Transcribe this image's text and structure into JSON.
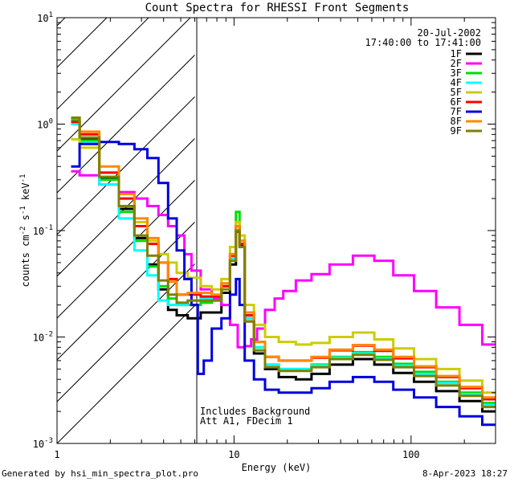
{
  "chart_data": {
    "type": "line",
    "title": "Count Spectra for RHESSI Front Segments",
    "xlabel": "Energy (keV)",
    "ylabel_parts": [
      "counts cm",
      "-2",
      " s",
      "-1",
      " keV",
      "-1"
    ],
    "xscale": "log",
    "yscale": "log",
    "xlim": [
      1,
      300
    ],
    "ylim": [
      0.001,
      10
    ],
    "x_ticks": [
      {
        "value": 1,
        "label": "1"
      },
      {
        "value": 10,
        "label": "10"
      },
      {
        "value": 100,
        "label": "100"
      }
    ],
    "y_ticks": [
      {
        "exp": 1,
        "base": "10",
        "sup": "1"
      },
      {
        "exp": 0,
        "base": "10",
        "sup": "0"
      },
      {
        "exp": -1,
        "base": "10",
        "sup": "-1"
      },
      {
        "exp": -2,
        "base": "10",
        "sup": "-2"
      },
      {
        "exp": -3,
        "base": "10",
        "sup": "-3"
      }
    ],
    "attenuator_hatch_limit_kev": 6,
    "info_lines": [
      "20-Jul-2002",
      "17:40:00 to 17:41:00"
    ],
    "annotations": [
      "Includes Background",
      "Att A1, FDecim 1"
    ],
    "legend_position": "top-right",
    "series": [
      {
        "name": "1F",
        "color": "#000000",
        "points": [
          [
            1.2,
            1.05
          ],
          [
            1.5,
            0.72
          ],
          [
            2.0,
            0.31
          ],
          [
            2.5,
            0.16
          ],
          [
            3.0,
            0.085
          ],
          [
            3.5,
            0.048
          ],
          [
            4.0,
            0.028
          ],
          [
            4.5,
            0.018
          ],
          [
            5.0,
            0.016
          ],
          [
            6.0,
            0.015
          ],
          [
            7.0,
            0.017
          ],
          [
            8.0,
            0.017
          ],
          [
            9.0,
            0.026
          ],
          [
            10.0,
            0.048
          ],
          [
            10.5,
            0.098
          ],
          [
            11.0,
            0.072
          ],
          [
            12.0,
            0.014
          ],
          [
            14.0,
            0.007
          ],
          [
            16.0,
            0.005
          ],
          [
            20.0,
            0.0042
          ],
          [
            25.0,
            0.004
          ],
          [
            30.0,
            0.0045
          ],
          [
            40.0,
            0.0055
          ],
          [
            55.0,
            0.0062
          ],
          [
            70.0,
            0.0055
          ],
          [
            90.0,
            0.0046
          ],
          [
            120.0,
            0.0038
          ],
          [
            160.0,
            0.0031
          ],
          [
            220.0,
            0.0025
          ],
          [
            290.0,
            0.002
          ]
        ]
      },
      {
        "name": "2F",
        "color": "#ff00ff",
        "points": [
          [
            1.2,
            0.36
          ],
          [
            1.5,
            0.33
          ],
          [
            2.0,
            0.27
          ],
          [
            2.5,
            0.23
          ],
          [
            3.0,
            0.2
          ],
          [
            3.5,
            0.17
          ],
          [
            4.0,
            0.14
          ],
          [
            4.5,
            0.11
          ],
          [
            5.0,
            0.09
          ],
          [
            5.5,
            0.06
          ],
          [
            6.0,
            0.042
          ],
          [
            7.0,
            0.028
          ],
          [
            8.0,
            0.023
          ],
          [
            9.0,
            0.02
          ],
          [
            10.0,
            0.013
          ],
          [
            11.0,
            0.008
          ],
          [
            12.0,
            0.0082
          ],
          [
            13.0,
            0.0095
          ],
          [
            14.0,
            0.012
          ],
          [
            16.0,
            0.018
          ],
          [
            18.0,
            0.023
          ],
          [
            20.0,
            0.027
          ],
          [
            25.0,
            0.034
          ],
          [
            30.0,
            0.039
          ],
          [
            40.0,
            0.048
          ],
          [
            55.0,
            0.058
          ],
          [
            70.0,
            0.052
          ],
          [
            90.0,
            0.038
          ],
          [
            120.0,
            0.027
          ],
          [
            160.0,
            0.019
          ],
          [
            220.0,
            0.013
          ],
          [
            290.0,
            0.0085
          ]
        ]
      },
      {
        "name": "3F",
        "color": "#00dd00",
        "points": [
          [
            1.2,
            1.1
          ],
          [
            1.5,
            0.7
          ],
          [
            2.0,
            0.3
          ],
          [
            2.5,
            0.15
          ],
          [
            3.0,
            0.08
          ],
          [
            3.5,
            0.046
          ],
          [
            4.0,
            0.03
          ],
          [
            4.5,
            0.023
          ],
          [
            5.0,
            0.02
          ],
          [
            6.0,
            0.02
          ],
          [
            7.0,
            0.021
          ],
          [
            8.0,
            0.022
          ],
          [
            9.0,
            0.03
          ],
          [
            10.0,
            0.06
          ],
          [
            10.5,
            0.15
          ],
          [
            11.0,
            0.08
          ],
          [
            12.0,
            0.015
          ],
          [
            14.0,
            0.008
          ],
          [
            16.0,
            0.0055
          ],
          [
            20.0,
            0.005
          ],
          [
            25.0,
            0.005
          ],
          [
            30.0,
            0.0055
          ],
          [
            40.0,
            0.0065
          ],
          [
            55.0,
            0.0072
          ],
          [
            70.0,
            0.0065
          ],
          [
            90.0,
            0.0056
          ],
          [
            120.0,
            0.0047
          ],
          [
            160.0,
            0.0038
          ],
          [
            220.0,
            0.003
          ],
          [
            290.0,
            0.0024
          ]
        ]
      },
      {
        "name": "4F",
        "color": "#00ffff",
        "points": [
          [
            1.2,
            1.0
          ],
          [
            1.5,
            0.66
          ],
          [
            2.0,
            0.27
          ],
          [
            2.5,
            0.13
          ],
          [
            3.0,
            0.065
          ],
          [
            3.5,
            0.038
          ],
          [
            4.0,
            0.022
          ],
          [
            4.5,
            0.02
          ],
          [
            5.0,
            0.02
          ],
          [
            6.0,
            0.022
          ],
          [
            7.0,
            0.023
          ],
          [
            8.0,
            0.024
          ],
          [
            9.0,
            0.03
          ],
          [
            10.0,
            0.055
          ],
          [
            10.5,
            0.12
          ],
          [
            11.0,
            0.075
          ],
          [
            12.0,
            0.015
          ],
          [
            14.0,
            0.008
          ],
          [
            16.0,
            0.0055
          ],
          [
            20.0,
            0.005
          ],
          [
            25.0,
            0.005
          ],
          [
            30.0,
            0.0054
          ],
          [
            40.0,
            0.0064
          ],
          [
            55.0,
            0.007
          ],
          [
            70.0,
            0.0063
          ],
          [
            90.0,
            0.0054
          ],
          [
            120.0,
            0.0045
          ],
          [
            160.0,
            0.0037
          ],
          [
            220.0,
            0.0029
          ],
          [
            290.0,
            0.0023
          ]
        ]
      },
      {
        "name": "5F",
        "color": "#cccc00",
        "points": [
          [
            1.2,
            0.72
          ],
          [
            1.5,
            0.6
          ],
          [
            2.0,
            0.35
          ],
          [
            2.5,
            0.2
          ],
          [
            3.0,
            0.12
          ],
          [
            3.5,
            0.08
          ],
          [
            4.0,
            0.06
          ],
          [
            4.5,
            0.05
          ],
          [
            5.0,
            0.04
          ],
          [
            6.0,
            0.036
          ],
          [
            7.0,
            0.03
          ],
          [
            8.0,
            0.028
          ],
          [
            9.0,
            0.035
          ],
          [
            10.0,
            0.07
          ],
          [
            10.5,
            0.12
          ],
          [
            11.0,
            0.09
          ],
          [
            12.0,
            0.02
          ],
          [
            14.0,
            0.013
          ],
          [
            16.0,
            0.01
          ],
          [
            20.0,
            0.009
          ],
          [
            25.0,
            0.0085
          ],
          [
            30.0,
            0.0088
          ],
          [
            40.0,
            0.01
          ],
          [
            55.0,
            0.011
          ],
          [
            70.0,
            0.0095
          ],
          [
            90.0,
            0.0078
          ],
          [
            120.0,
            0.0062
          ],
          [
            160.0,
            0.005
          ],
          [
            220.0,
            0.0039
          ],
          [
            290.0,
            0.003
          ]
        ]
      },
      {
        "name": "6F",
        "color": "#ff0000",
        "points": [
          [
            1.2,
            1.05
          ],
          [
            1.5,
            0.8
          ],
          [
            2.0,
            0.35
          ],
          [
            2.5,
            0.2
          ],
          [
            3.0,
            0.11
          ],
          [
            3.5,
            0.075
          ],
          [
            4.0,
            0.05
          ],
          [
            4.5,
            0.035
          ],
          [
            5.0,
            0.025
          ],
          [
            6.0,
            0.025
          ],
          [
            7.0,
            0.024
          ],
          [
            8.0,
            0.024
          ],
          [
            9.0,
            0.03
          ],
          [
            10.0,
            0.058
          ],
          [
            10.5,
            0.11
          ],
          [
            11.0,
            0.075
          ],
          [
            12.0,
            0.016
          ],
          [
            14.0,
            0.009
          ],
          [
            16.0,
            0.0065
          ],
          [
            20.0,
            0.006
          ],
          [
            25.0,
            0.006
          ],
          [
            30.0,
            0.0064
          ],
          [
            40.0,
            0.0075
          ],
          [
            55.0,
            0.0083
          ],
          [
            70.0,
            0.0074
          ],
          [
            90.0,
            0.0063
          ],
          [
            120.0,
            0.0052
          ],
          [
            160.0,
            0.0042
          ],
          [
            220.0,
            0.0033
          ],
          [
            290.0,
            0.0026
          ]
        ]
      },
      {
        "name": "7F",
        "color": "#0000dd",
        "points": [
          [
            1.2,
            0.4
          ],
          [
            1.5,
            0.65
          ],
          [
            2.0,
            0.68
          ],
          [
            2.5,
            0.65
          ],
          [
            3.0,
            0.58
          ],
          [
            3.5,
            0.48
          ],
          [
            4.0,
            0.28
          ],
          [
            4.5,
            0.13
          ],
          [
            5.0,
            0.065
          ],
          [
            5.5,
            0.035
          ],
          [
            6.0,
            0.02
          ],
          [
            6.5,
            0.0045
          ],
          [
            7.0,
            0.006
          ],
          [
            8.0,
            0.012
          ],
          [
            9.0,
            0.015
          ],
          [
            10.0,
            0.025
          ],
          [
            10.5,
            0.035
          ],
          [
            11.0,
            0.02
          ],
          [
            12.0,
            0.006
          ],
          [
            14.0,
            0.004
          ],
          [
            16.0,
            0.0032
          ],
          [
            20.0,
            0.003
          ],
          [
            25.0,
            0.003
          ],
          [
            30.0,
            0.0033
          ],
          [
            40.0,
            0.0038
          ],
          [
            55.0,
            0.0042
          ],
          [
            70.0,
            0.0038
          ],
          [
            90.0,
            0.0032
          ],
          [
            120.0,
            0.0027
          ],
          [
            160.0,
            0.0022
          ],
          [
            220.0,
            0.0018
          ],
          [
            290.0,
            0.0015
          ]
        ]
      },
      {
        "name": "8F",
        "color": "#ff8800",
        "points": [
          [
            1.2,
            1.15
          ],
          [
            1.5,
            0.85
          ],
          [
            2.0,
            0.4
          ],
          [
            2.5,
            0.22
          ],
          [
            3.0,
            0.13
          ],
          [
            3.5,
            0.085
          ],
          [
            4.0,
            0.05
          ],
          [
            4.5,
            0.033
          ],
          [
            5.0,
            0.025
          ],
          [
            6.0,
            0.026
          ],
          [
            7.0,
            0.026
          ],
          [
            8.0,
            0.025
          ],
          [
            9.0,
            0.032
          ],
          [
            10.0,
            0.06
          ],
          [
            10.5,
            0.11
          ],
          [
            11.0,
            0.08
          ],
          [
            12.0,
            0.017
          ],
          [
            14.0,
            0.009
          ],
          [
            16.0,
            0.0065
          ],
          [
            20.0,
            0.006
          ],
          [
            25.0,
            0.006
          ],
          [
            30.0,
            0.0065
          ],
          [
            40.0,
            0.0076
          ],
          [
            55.0,
            0.0084
          ],
          [
            70.0,
            0.0076
          ],
          [
            90.0,
            0.0065
          ],
          [
            120.0,
            0.0053
          ],
          [
            160.0,
            0.0043
          ],
          [
            220.0,
            0.0034
          ],
          [
            290.0,
            0.0027
          ]
        ]
      },
      {
        "name": "9F",
        "color": "#808000",
        "points": [
          [
            1.2,
            1.15
          ],
          [
            1.5,
            0.75
          ],
          [
            2.0,
            0.32
          ],
          [
            2.5,
            0.17
          ],
          [
            3.0,
            0.09
          ],
          [
            3.5,
            0.058
          ],
          [
            4.0,
            0.034
          ],
          [
            4.5,
            0.025
          ],
          [
            5.0,
            0.021
          ],
          [
            6.0,
            0.022
          ],
          [
            7.0,
            0.022
          ],
          [
            8.0,
            0.022
          ],
          [
            9.0,
            0.028
          ],
          [
            10.0,
            0.052
          ],
          [
            10.5,
            0.1
          ],
          [
            11.0,
            0.07
          ],
          [
            12.0,
            0.014
          ],
          [
            14.0,
            0.0075
          ],
          [
            16.0,
            0.0052
          ],
          [
            20.0,
            0.0048
          ],
          [
            25.0,
            0.0048
          ],
          [
            30.0,
            0.0052
          ],
          [
            40.0,
            0.0062
          ],
          [
            55.0,
            0.0068
          ],
          [
            70.0,
            0.0061
          ],
          [
            90.0,
            0.0052
          ],
          [
            120.0,
            0.0043
          ],
          [
            160.0,
            0.0035
          ],
          [
            220.0,
            0.0028
          ],
          [
            290.0,
            0.0022
          ]
        ]
      }
    ]
  },
  "footer": {
    "left": "Generated by hsi_min_spectra_plot.pro",
    "right": "8-Apr-2023 18:27"
  }
}
